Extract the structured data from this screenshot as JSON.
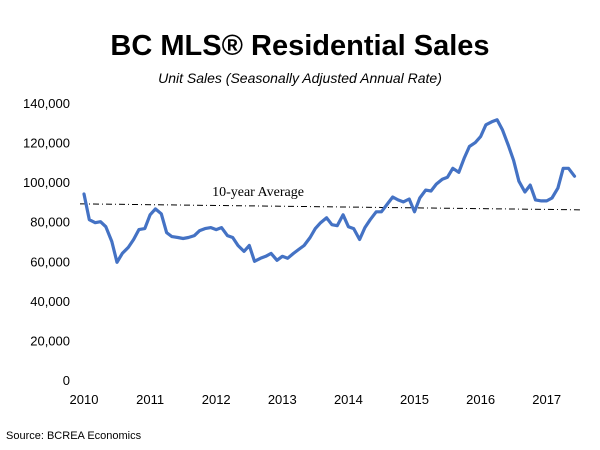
{
  "chart_data": {
    "type": "line",
    "title": "BC MLS® Residential Sales",
    "subtitle": "Unit Sales (Seasonally Adjusted Annual Rate)",
    "source": "Source: BCREA Economics",
    "xlabel": "",
    "ylabel": "",
    "xlim": [
      2010,
      2017.5
    ],
    "ylim": [
      0,
      140000
    ],
    "x_ticks": [
      2010,
      2011,
      2012,
      2013,
      2014,
      2015,
      2016,
      2017
    ],
    "x_tick_labels": [
      "2010",
      "2011",
      "2012",
      "2013",
      "2014",
      "2015",
      "2016",
      "2017"
    ],
    "y_ticks": [
      0,
      20000,
      40000,
      60000,
      80000,
      100000,
      120000,
      140000
    ],
    "y_tick_labels": [
      "0",
      "20,000",
      "40,000",
      "60,000",
      "80,000",
      "100,000",
      "120,000",
      "140,000"
    ],
    "grid": false,
    "line_color": "#4472C4",
    "reference_line": {
      "label": "10-year Average",
      "value": 86000
    },
    "series": [
      {
        "points": [
          [
            2010.0,
            94000
          ],
          [
            2010.08,
            81000
          ],
          [
            2010.17,
            79500
          ],
          [
            2010.25,
            80000
          ],
          [
            2010.33,
            77500
          ],
          [
            2010.42,
            70000
          ],
          [
            2010.5,
            59500
          ],
          [
            2010.58,
            64000
          ],
          [
            2010.67,
            67000
          ],
          [
            2010.75,
            71000
          ],
          [
            2010.83,
            76000
          ],
          [
            2010.92,
            76500
          ],
          [
            2011.0,
            83500
          ],
          [
            2011.08,
            86500
          ],
          [
            2011.17,
            84000
          ],
          [
            2011.25,
            74500
          ],
          [
            2011.33,
            72500
          ],
          [
            2011.42,
            72000
          ],
          [
            2011.5,
            71500
          ],
          [
            2011.58,
            72000
          ],
          [
            2011.67,
            73000
          ],
          [
            2011.75,
            75500
          ],
          [
            2011.83,
            76500
          ],
          [
            2011.92,
            77000
          ],
          [
            2012.0,
            76000
          ],
          [
            2012.08,
            77000
          ],
          [
            2012.17,
            73000
          ],
          [
            2012.25,
            72000
          ],
          [
            2012.33,
            68000
          ],
          [
            2012.42,
            65000
          ],
          [
            2012.5,
            68000
          ],
          [
            2012.58,
            60000
          ],
          [
            2012.67,
            61500
          ],
          [
            2012.75,
            62500
          ],
          [
            2012.83,
            64000
          ],
          [
            2012.92,
            60500
          ],
          [
            2013.0,
            62500
          ],
          [
            2013.08,
            61500
          ],
          [
            2013.17,
            64000
          ],
          [
            2013.25,
            66000
          ],
          [
            2013.33,
            68000
          ],
          [
            2013.42,
            72000
          ],
          [
            2013.5,
            76500
          ],
          [
            2013.58,
            79500
          ],
          [
            2013.67,
            82000
          ],
          [
            2013.75,
            78500
          ],
          [
            2013.83,
            78000
          ],
          [
            2013.92,
            83500
          ],
          [
            2014.0,
            77500
          ],
          [
            2014.08,
            76500
          ],
          [
            2014.17,
            71000
          ],
          [
            2014.25,
            77000
          ],
          [
            2014.33,
            81000
          ],
          [
            2014.42,
            85000
          ],
          [
            2014.5,
            85000
          ],
          [
            2014.58,
            88500
          ],
          [
            2014.67,
            92500
          ],
          [
            2014.75,
            91000
          ],
          [
            2014.83,
            90000
          ],
          [
            2014.92,
            91500
          ],
          [
            2015.0,
            85000
          ],
          [
            2015.08,
            92000
          ],
          [
            2015.17,
            96000
          ],
          [
            2015.25,
            95500
          ],
          [
            2015.33,
            99000
          ],
          [
            2015.42,
            101500
          ],
          [
            2015.5,
            102500
          ],
          [
            2015.58,
            107000
          ],
          [
            2015.67,
            105000
          ],
          [
            2015.75,
            112000
          ],
          [
            2015.83,
            118000
          ],
          [
            2015.92,
            120000
          ],
          [
            2016.0,
            123000
          ],
          [
            2016.08,
            129000
          ],
          [
            2016.17,
            130500
          ],
          [
            2016.25,
            131500
          ],
          [
            2016.33,
            126500
          ],
          [
            2016.42,
            118500
          ],
          [
            2016.5,
            111000
          ],
          [
            2016.58,
            100500
          ],
          [
            2016.67,
            95000
          ],
          [
            2016.75,
            98500
          ],
          [
            2016.83,
            91000
          ],
          [
            2016.92,
            90500
          ],
          [
            2017.0,
            90500
          ],
          [
            2017.08,
            92000
          ],
          [
            2017.17,
            97000
          ],
          [
            2017.25,
            107000
          ],
          [
            2017.33,
            107000
          ],
          [
            2017.42,
            103000
          ]
        ]
      }
    ]
  }
}
